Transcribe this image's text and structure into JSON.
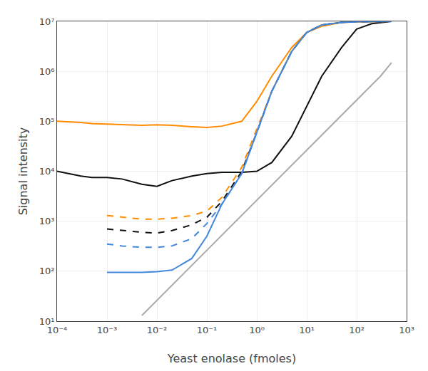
{
  "chart_data": {
    "type": "line",
    "title": "",
    "x_label": "Yeast enolase (fmoles)",
    "y_label": "Signal intensity",
    "log": true,
    "grid": true,
    "xlim": [
      0.0001,
      1000
    ],
    "ylim": [
      10,
      10000000
    ],
    "xticks": [
      {
        "value": 0.0001,
        "label": "10⁻⁴"
      },
      {
        "value": 0.001,
        "label": "10⁻³"
      },
      {
        "value": 0.01,
        "label": "10⁻²"
      },
      {
        "value": 0.1,
        "label": "10⁻¹"
      },
      {
        "value": 1,
        "label": "10⁰"
      },
      {
        "value": 10,
        "label": "10¹"
      },
      {
        "value": 100,
        "label": "10²"
      },
      {
        "value": 1000,
        "label": "10³"
      }
    ],
    "yticks": [
      {
        "value": 10,
        "label": "10¹"
      },
      {
        "value": 100,
        "label": "10²"
      },
      {
        "value": 1000,
        "label": "10³"
      },
      {
        "value": 10000,
        "label": "10⁴"
      },
      {
        "value": 100000,
        "label": "10⁵"
      },
      {
        "value": 1000000,
        "label": "10⁶"
      },
      {
        "value": 10000000,
        "label": "10⁷"
      }
    ],
    "series": [
      {
        "color": "#ff8c00",
        "line_style": "solid",
        "x": [
          0.0001,
          0.0003,
          0.0005,
          0.001,
          0.002,
          0.005,
          0.01,
          0.02,
          0.05,
          0.1,
          0.2,
          0.5,
          1,
          2,
          5,
          10,
          20,
          50,
          100,
          200,
          500
        ],
        "values": [
          100000.0,
          95000.0,
          90000.0,
          88000.0,
          85000.0,
          83000.0,
          85000.0,
          83000.0,
          78000.0,
          75000.0,
          80000.0,
          100000.0,
          250000.0,
          800000.0,
          3000000.0,
          6000000.0,
          8000000.0,
          9500000.0,
          9800000.0,
          9900000.0,
          10000000.0
        ]
      },
      {
        "color": "#111111",
        "line_style": "solid",
        "x": [
          0.0001,
          0.0003,
          0.0005,
          0.001,
          0.002,
          0.005,
          0.01,
          0.02,
          0.05,
          0.1,
          0.2,
          0.5,
          1,
          2,
          5,
          10,
          20,
          50,
          100,
          200,
          500
        ],
        "values": [
          10000.0,
          8000.0,
          7500.0,
          7500.0,
          7000.0,
          5500.0,
          5000.0,
          6500.0,
          8000.0,
          9000.0,
          9500.0,
          9500.0,
          10000.0,
          15000.0,
          50000.0,
          200000.0,
          800000.0,
          3000000.0,
          7000000.0,
          9000000.0,
          10000000.0
        ]
      },
      {
        "color": "#ff8c00",
        "line_style": "dashed",
        "x": [
          0.001,
          0.002,
          0.005,
          0.01,
          0.02,
          0.05,
          0.1,
          0.2,
          0.5,
          1,
          2,
          5,
          10,
          20,
          50,
          100,
          200,
          500
        ],
        "values": [
          1300.0,
          1200.0,
          1100.0,
          1100.0,
          1150.0,
          1300.0,
          1600.0,
          3000.0,
          12000.0,
          70000.0,
          400000.0,
          2500000.0,
          6000000.0,
          8500000.0,
          9500000.0,
          9800000.0,
          9900000.0,
          10000000.0
        ]
      },
      {
        "color": "#111111",
        "line_style": "dashed",
        "x": [
          0.001,
          0.002,
          0.005,
          0.01,
          0.02,
          0.05,
          0.1,
          0.2,
          0.5,
          1,
          2,
          5,
          10,
          20,
          50,
          100,
          200,
          500
        ],
        "values": [
          700.0,
          650.0,
          600.0,
          580.0,
          650.0,
          850.0,
          1200.0,
          2500.0,
          10000.0,
          60000.0,
          400000.0,
          2500000.0,
          6000000.0,
          8500000.0,
          9500000.0,
          9800000.0,
          9900000.0,
          10000000.0
        ]
      },
      {
        "color": "#4488dd",
        "line_style": "dashed",
        "x": [
          0.001,
          0.002,
          0.005,
          0.01,
          0.02,
          0.05,
          0.1,
          0.2,
          0.5,
          1,
          2,
          5,
          10,
          20,
          50,
          100,
          200,
          500
        ],
        "values": [
          350.0,
          320.0,
          300.0,
          300.0,
          320.0,
          450.0,
          900.0,
          2200.0,
          9000.0,
          60000.0,
          400000.0,
          2500000.0,
          6000000.0,
          8500000.0,
          9500000.0,
          9800000.0,
          9900000.0,
          10000000.0
        ]
      },
      {
        "color": "#4488dd",
        "line_style": "solid",
        "x": [
          0.001,
          0.002,
          0.005,
          0.01,
          0.02,
          0.05,
          0.1,
          0.2,
          0.5,
          1,
          2,
          5,
          10,
          20,
          50,
          100,
          200,
          500
        ],
        "values": [
          95.0,
          95.0,
          95.0,
          98.0,
          105.0,
          180.0,
          500.0,
          2200.0,
          9000.0,
          60000.0,
          400000.0,
          2500000.0,
          6000000.0,
          8500000.0,
          9500000.0,
          9800000.0,
          9900000.0,
          10000000.0
        ]
      },
      {
        "color": "#aaaaaa",
        "line_style": "solid",
        "x": [
          0.005,
          0.01,
          0.03,
          0.1,
          0.3,
          1,
          3,
          10,
          30,
          100,
          300,
          500
        ],
        "values": [
          13,
          26,
          80,
          260,
          800,
          2600,
          8000,
          26000.0,
          80000.0,
          260000.0,
          800000.0,
          1500000.0
        ]
      }
    ]
  }
}
